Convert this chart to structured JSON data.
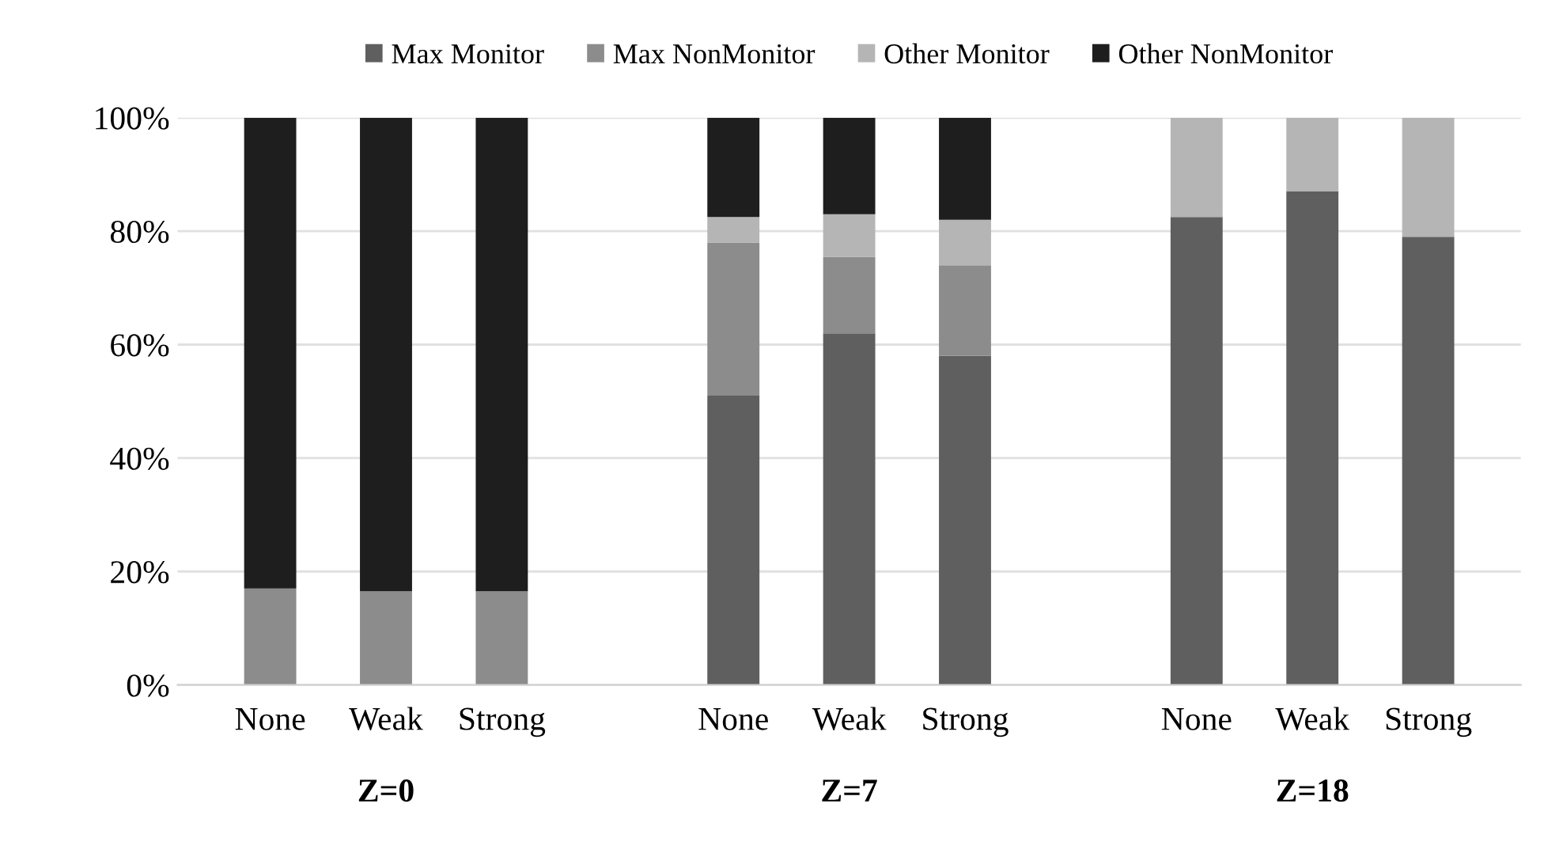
{
  "chart_data": {
    "type": "bar",
    "stacked": true,
    "categories": [
      "None",
      "Weak",
      "Strong",
      null,
      "None",
      "Weak",
      "Strong",
      null,
      "None",
      "Weak",
      "Strong"
    ],
    "series": [
      {
        "name": "Max Monitor",
        "color": "#5f5f5f",
        "values": [
          0,
          0,
          0,
          null,
          51,
          62,
          58,
          null,
          82.5,
          87,
          79
        ]
      },
      {
        "name": "Max NonMonitor",
        "color": "#8c8c8c",
        "values": [
          17,
          16.5,
          16.5,
          null,
          27,
          13.5,
          16,
          null,
          0,
          0,
          0
        ]
      },
      {
        "name": "Other Monitor",
        "color": "#b5b5b5",
        "values": [
          0,
          0,
          0,
          null,
          4.5,
          7.5,
          8,
          null,
          17.5,
          13,
          21
        ]
      },
      {
        "name": "Other NonMonitor",
        "color": "#1e1e1e",
        "values": [
          83,
          83.5,
          83.5,
          null,
          17.5,
          17,
          18,
          null,
          0,
          0,
          0
        ]
      }
    ],
    "annotations": [
      "Z=0",
      "Z=7",
      "Z=18"
    ],
    "ylim": [
      0,
      100
    ],
    "yticks": [
      {
        "value": 0,
        "label": "0%"
      },
      {
        "value": 20,
        "label": "20%"
      },
      {
        "value": 40,
        "label": "40%"
      },
      {
        "value": 60,
        "label": "60%"
      },
      {
        "value": 80,
        "label": "80%"
      },
      {
        "value": 100,
        "label": "100%"
      }
    ],
    "grid": "y",
    "legend": "top"
  }
}
